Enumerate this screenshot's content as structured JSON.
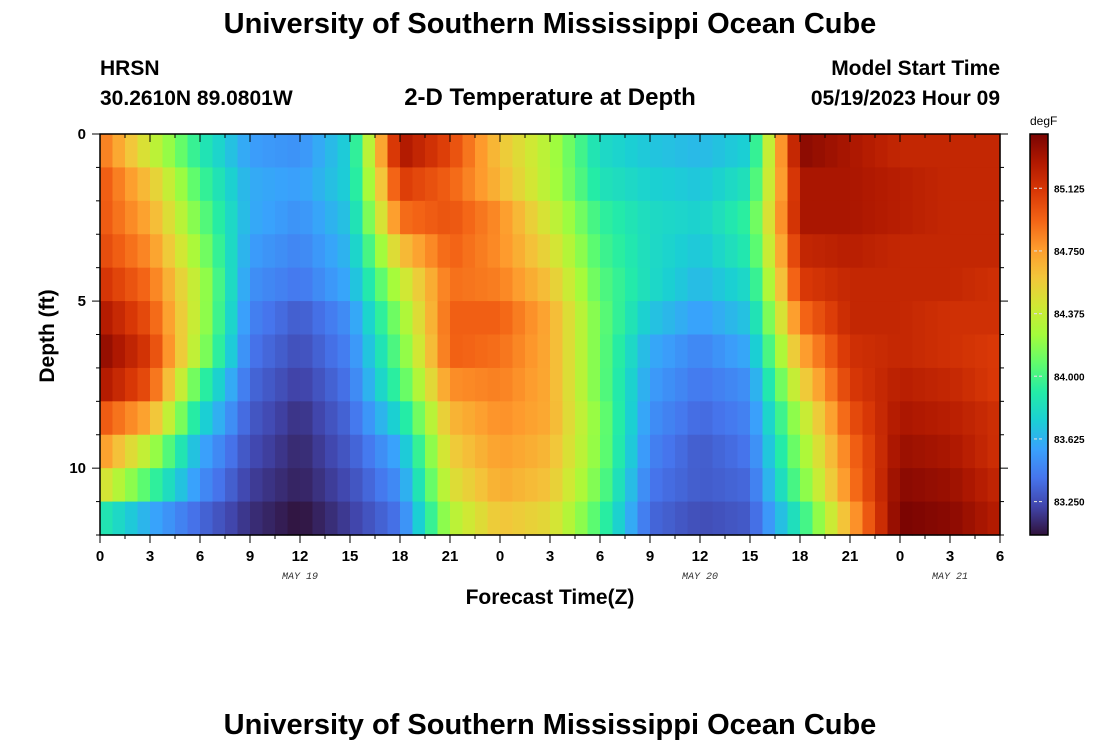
{
  "header": {
    "title": "University of Southern Mississippi Ocean Cube",
    "station": "HRSN",
    "coords": "30.2610N  89.0801W",
    "chart_title": "2-D Temperature at Depth",
    "model_start_label": "Model Start Time",
    "model_start_value": "05/19/2023 Hour 09"
  },
  "footer": {
    "title": "University of Southern Mississippi Ocean Cube"
  },
  "colorbar": {
    "unit": "degF",
    "tick_labels": [
      "85.125",
      "84.750",
      "84.375",
      "84.000",
      "83.625",
      "83.250"
    ],
    "colors": [
      "#30123b",
      "#4145ab",
      "#4675ed",
      "#39a2fc",
      "#1bcfd4",
      "#24eca6",
      "#61fc6c",
      "#a4fc3b",
      "#d1e834",
      "#f3c63a",
      "#fe9b2d",
      "#f36315",
      "#d93806",
      "#b11901",
      "#7a0402"
    ]
  },
  "chart_data": {
    "type": "heatmap",
    "title": "2-D Temperature at Depth",
    "xlabel": "Forecast Time(Z)",
    "ylabel": "Depth (ft)",
    "xlim": [
      0,
      54
    ],
    "ylim": [
      12,
      0
    ],
    "value_range": [
      83.05,
      85.45
    ],
    "x_tick_labels": [
      "0",
      "3",
      "6",
      "9",
      "12",
      "15",
      "18",
      "21",
      "0",
      "3",
      "6",
      "9",
      "12",
      "15",
      "18",
      "21",
      "0",
      "3",
      "6"
    ],
    "x_tick_values": [
      0,
      3,
      6,
      9,
      12,
      15,
      18,
      21,
      24,
      27,
      30,
      33,
      36,
      39,
      42,
      45,
      48,
      51,
      54
    ],
    "y_tick_labels": [
      "0",
      "5",
      "10"
    ],
    "y_tick_values": [
      0,
      5,
      10
    ],
    "day_labels": [
      {
        "label": "MAY 19",
        "x": 12
      },
      {
        "label": "MAY 20",
        "x": 36
      },
      {
        "label": "MAY 21",
        "x": 51
      }
    ],
    "depths": [
      0.5,
      1.5,
      2.5,
      3.5,
      4.5,
      5.5,
      6.5,
      7.5,
      8.5,
      9.5,
      10.5,
      11.5
    ],
    "times": [
      0,
      3,
      6,
      9,
      12,
      15,
      18,
      21,
      24,
      27,
      30,
      33,
      36,
      39,
      42,
      45,
      48,
      51,
      54
    ],
    "values": [
      [
        84.9,
        84.4,
        83.9,
        83.55,
        83.5,
        83.75,
        85.3,
        85.05,
        84.6,
        84.3,
        83.8,
        83.7,
        83.65,
        83.75,
        85.4,
        85.3,
        85.2,
        85.2,
        85.2
      ],
      [
        85.0,
        84.6,
        84.0,
        83.6,
        83.55,
        83.75,
        85.1,
        84.95,
        84.65,
        84.3,
        83.85,
        83.75,
        83.7,
        83.85,
        85.3,
        85.3,
        85.25,
        85.2,
        85.2
      ],
      [
        85.0,
        84.7,
        84.1,
        83.6,
        83.5,
        83.7,
        84.9,
        85.0,
        84.8,
        84.4,
        83.95,
        83.8,
        83.75,
        83.95,
        85.3,
        85.3,
        85.25,
        85.2,
        85.2
      ],
      [
        85.05,
        84.8,
        84.2,
        83.55,
        83.45,
        83.65,
        84.6,
        84.95,
        84.8,
        84.5,
        84.0,
        83.8,
        83.7,
        83.9,
        85.2,
        85.25,
        85.2,
        85.2,
        85.2
      ],
      [
        85.15,
        84.9,
        84.3,
        83.5,
        83.4,
        83.6,
        84.35,
        84.9,
        84.85,
        84.6,
        84.05,
        83.8,
        83.65,
        83.8,
        85.1,
        85.2,
        85.2,
        85.2,
        85.15
      ],
      [
        85.3,
        85.0,
        84.3,
        83.45,
        83.3,
        83.5,
        84.2,
        84.95,
        84.95,
        84.7,
        84.1,
        83.7,
        83.55,
        83.7,
        84.9,
        85.2,
        85.2,
        85.15,
        85.15
      ],
      [
        85.4,
        85.1,
        84.25,
        83.4,
        83.25,
        83.45,
        84.1,
        84.95,
        84.9,
        84.7,
        84.1,
        83.6,
        83.45,
        83.6,
        84.7,
        85.15,
        85.2,
        85.15,
        85.1
      ],
      [
        85.3,
        85.0,
        84.0,
        83.35,
        83.2,
        83.4,
        84.0,
        84.8,
        84.85,
        84.7,
        84.1,
        83.55,
        83.4,
        83.5,
        84.5,
        85.1,
        85.25,
        85.2,
        85.1
      ],
      [
        85.0,
        84.7,
        83.8,
        83.3,
        83.15,
        83.35,
        83.8,
        84.65,
        84.8,
        84.7,
        84.15,
        83.5,
        83.35,
        83.45,
        84.3,
        85.0,
        85.3,
        85.25,
        85.15
      ],
      [
        84.8,
        84.3,
        83.6,
        83.25,
        83.12,
        83.3,
        83.6,
        84.55,
        84.75,
        84.65,
        84.15,
        83.45,
        83.3,
        83.4,
        84.2,
        84.9,
        85.35,
        85.3,
        85.15
      ],
      [
        84.5,
        84.0,
        83.5,
        83.2,
        83.1,
        83.25,
        83.5,
        84.45,
        84.7,
        84.6,
        84.1,
        83.4,
        83.3,
        83.35,
        84.1,
        84.85,
        85.4,
        85.35,
        85.2
      ],
      [
        83.9,
        83.6,
        83.35,
        83.15,
        83.05,
        83.2,
        83.4,
        84.3,
        84.6,
        84.5,
        84.0,
        83.35,
        83.25,
        83.3,
        83.9,
        84.7,
        85.45,
        85.4,
        85.25
      ]
    ]
  }
}
